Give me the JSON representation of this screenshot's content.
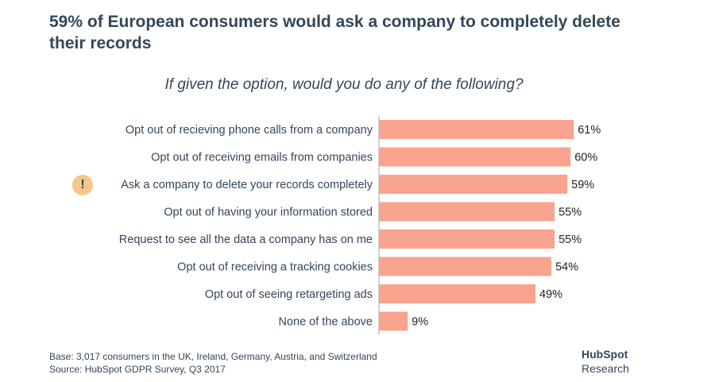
{
  "header": {
    "title": "59% of European consumers would ask a company to completely delete their records"
  },
  "colors": {
    "bar": "#f8a38d",
    "text": "#33475b",
    "axis": "#9aa5b1",
    "alert": "#f8c58a"
  },
  "icons": {
    "highlight": "exclamation-icon"
  },
  "chart_data": {
    "type": "bar",
    "orientation": "horizontal",
    "title": "If given the option, would you do any of the following?",
    "xlabel": "",
    "ylabel": "",
    "xlim": [
      0,
      100
    ],
    "grid": false,
    "legend": "none",
    "value_suffix": "%",
    "highlight_index": 2,
    "categories": [
      "Opt out of recieving phone calls from a company",
      "Opt out of receiving emails from companies",
      "Ask a company to delete your records completely",
      "Opt out of having your information stored",
      "Request to see all the data a company has on me",
      "Opt out of receiving a tracking cookies",
      "Opt out of seeing retargeting ads",
      "None of the above"
    ],
    "values": [
      61,
      60,
      59,
      55,
      55,
      54,
      49,
      9
    ],
    "data_labels": [
      "61%",
      "60%",
      "59%",
      "55%",
      "55%",
      "54%",
      "49%",
      "9%"
    ]
  },
  "footer": {
    "base": "Base: 3,017 consumers in the UK, Ireland, Germany, Austria, and Switzerland",
    "source": "Source: HubSpot GDPR Survey, Q3 2017"
  },
  "brand": {
    "name": "HubSpot",
    "sub": "Research"
  }
}
